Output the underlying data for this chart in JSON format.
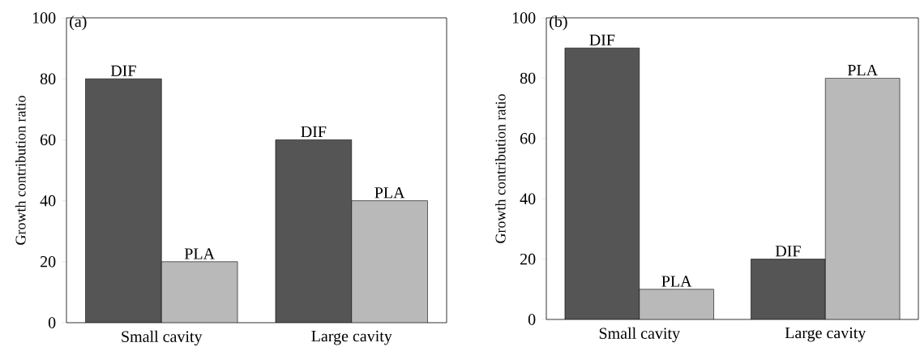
{
  "chart_data": [
    {
      "type": "bar",
      "title": "(a)",
      "ylabel": "Growth contribution ratio",
      "categories": [
        "Small cavity",
        "Large cavity"
      ],
      "ylim": [
        0,
        100
      ],
      "yticks": [
        0,
        20,
        40,
        60,
        80,
        100
      ],
      "series": [
        {
          "name": "DIF",
          "color": "#555555",
          "values": [
            80,
            60
          ]
        },
        {
          "name": "PLA",
          "color": "#b9b9b9",
          "values": [
            20,
            40
          ]
        }
      ]
    },
    {
      "type": "bar",
      "title": "(b)",
      "ylabel": "Growth contribution ratio",
      "categories": [
        "Small cavity",
        "Large cavity"
      ],
      "ylim": [
        0,
        100
      ],
      "yticks": [
        0,
        20,
        40,
        60,
        80,
        100
      ],
      "series": [
        {
          "name": "DIF",
          "color": "#555555",
          "values": [
            90,
            20
          ]
        },
        {
          "name": "PLA",
          "color": "#b9b9b9",
          "values": [
            10,
            80
          ]
        }
      ]
    }
  ]
}
